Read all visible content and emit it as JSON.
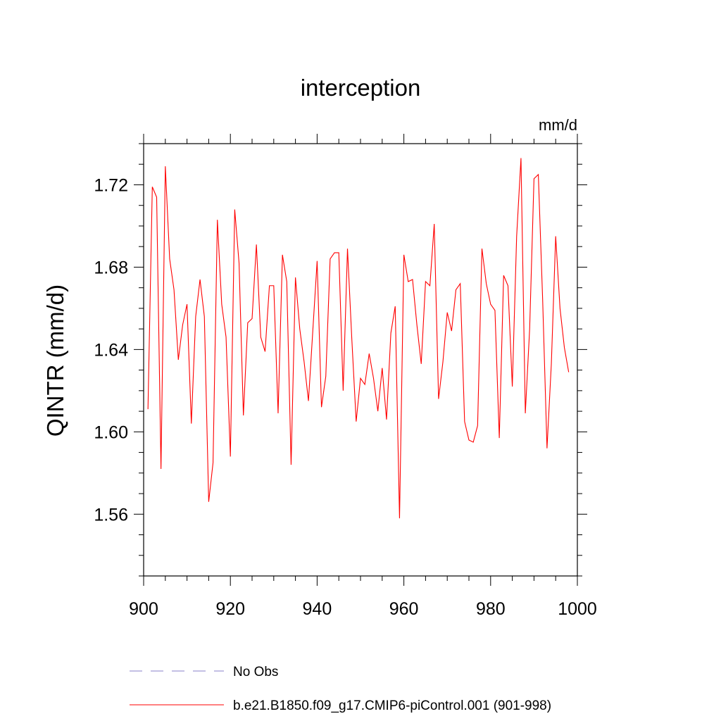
{
  "chart_data": {
    "type": "line",
    "title": "interception",
    "units_label": "mm/d",
    "xlabel": "",
    "ylabel": "QINTR  (mm/d)",
    "xlim": [
      900,
      1000
    ],
    "ylim": [
      1.53,
      1.74
    ],
    "x_ticks": [
      900,
      920,
      940,
      960,
      980,
      1000
    ],
    "x_tick_labels": [
      "900",
      "920",
      "940",
      "960",
      "980",
      "1000"
    ],
    "y_ticks": [
      1.56,
      1.6,
      1.64,
      1.68,
      1.72
    ],
    "y_tick_labels": [
      "1.56",
      "1.60",
      "1.64",
      "1.68",
      "1.72"
    ],
    "x_minor_step": 5,
    "y_minor_step": 0.01,
    "legend": [
      {
        "name": "No Obs",
        "color": "#8a80c8",
        "style": "dashed"
      },
      {
        "name": "b.e21.B1850.f09_g17.CMIP6-piControl.001 (901-998)",
        "color": "#ff0000",
        "style": "solid"
      }
    ],
    "series": [
      {
        "name": "b.e21.B1850.f09_g17.CMIP6-piControl.001 (901-998)",
        "color": "#ff0000",
        "x": [
          901,
          902,
          903,
          904,
          905,
          906,
          907,
          908,
          909,
          910,
          911,
          912,
          913,
          914,
          915,
          916,
          917,
          918,
          919,
          920,
          921,
          922,
          923,
          924,
          925,
          926,
          927,
          928,
          929,
          930,
          931,
          932,
          933,
          934,
          935,
          936,
          937,
          938,
          939,
          940,
          941,
          942,
          943,
          944,
          945,
          946,
          947,
          948,
          949,
          950,
          951,
          952,
          953,
          954,
          955,
          956,
          957,
          958,
          959,
          960,
          961,
          962,
          963,
          964,
          965,
          966,
          967,
          968,
          969,
          970,
          971,
          972,
          973,
          974,
          975,
          976,
          977,
          978,
          979,
          980,
          981,
          982,
          983,
          984,
          985,
          986,
          987,
          988,
          989,
          990,
          991,
          992,
          993,
          994,
          995,
          996,
          997,
          998
        ],
        "values": [
          1.611,
          1.719,
          1.714,
          1.582,
          1.729,
          1.684,
          1.669,
          1.635,
          1.652,
          1.662,
          1.604,
          1.656,
          1.674,
          1.656,
          1.566,
          1.585,
          1.703,
          1.662,
          1.646,
          1.588,
          1.708,
          1.682,
          1.608,
          1.653,
          1.655,
          1.691,
          1.646,
          1.639,
          1.671,
          1.671,
          1.609,
          1.686,
          1.673,
          1.584,
          1.675,
          1.65,
          1.634,
          1.615,
          1.649,
          1.683,
          1.612,
          1.627,
          1.684,
          1.687,
          1.687,
          1.62,
          1.689,
          1.645,
          1.605,
          1.626,
          1.623,
          1.638,
          1.626,
          1.61,
          1.631,
          1.606,
          1.648,
          1.661,
          1.558,
          1.686,
          1.673,
          1.674,
          1.652,
          1.633,
          1.673,
          1.671,
          1.701,
          1.616,
          1.634,
          1.658,
          1.649,
          1.669,
          1.672,
          1.605,
          1.596,
          1.595,
          1.603,
          1.689,
          1.672,
          1.662,
          1.659,
          1.597,
          1.676,
          1.671,
          1.622,
          1.695,
          1.733,
          1.609,
          1.65,
          1.723,
          1.725,
          1.664,
          1.592,
          1.633,
          1.695,
          1.66,
          1.641,
          1.629
        ]
      }
    ]
  }
}
